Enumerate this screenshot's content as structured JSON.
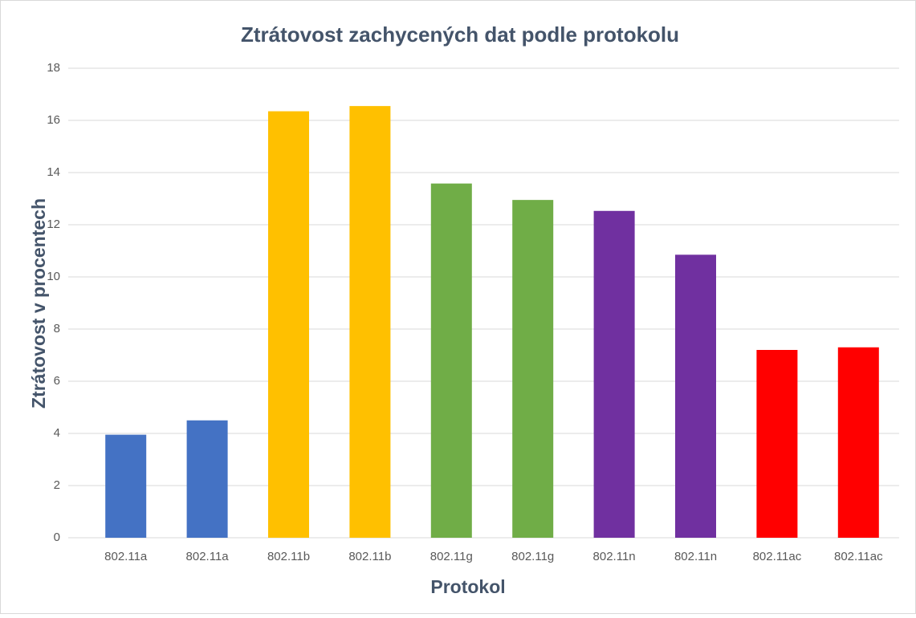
{
  "chart_data": {
    "type": "bar",
    "title": "Ztrátovost zachycených dat podle protokolu",
    "x_label": "Protokol",
    "y_label": "Ztrátovost v procentech",
    "categories": [
      "802.11a",
      "802.11a",
      "802.11b",
      "802.11b",
      "802.11g",
      "802.11g",
      "802.11n",
      "802.11n",
      "802.11ac",
      "802.11ac"
    ],
    "values": [
      3.95,
      4.5,
      16.35,
      16.55,
      13.58,
      12.95,
      12.53,
      10.85,
      7.2,
      7.3
    ],
    "colors": [
      "#4472c4",
      "#4472c4",
      "#ffc000",
      "#ffc000",
      "#70ad47",
      "#70ad47",
      "#7030a0",
      "#7030a0",
      "#ff0000",
      "#ff0000"
    ],
    "ylim": [
      0,
      18
    ],
    "yticks": [
      0,
      2,
      4,
      6,
      8,
      10,
      12,
      14,
      16,
      18
    ],
    "grid": true
  }
}
